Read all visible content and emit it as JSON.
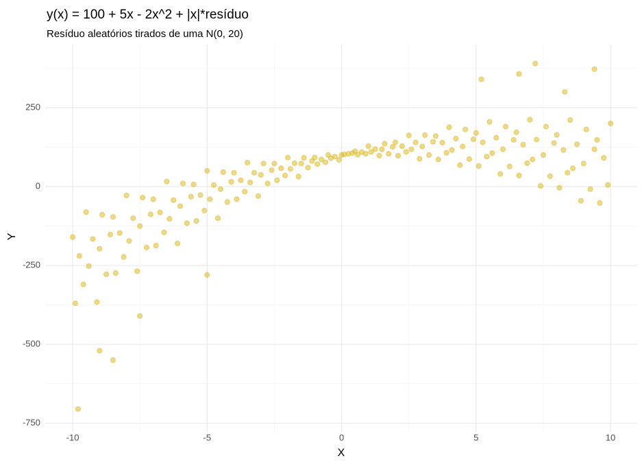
{
  "chart_data": {
    "type": "scatter",
    "title": "y(x) = 100 + 5x - 2x^2 + |x|*resíduo",
    "subtitle": "Resíduo aleatórios tirados de uma N(0, 20)",
    "x_label": "X",
    "y_label": "Y",
    "color": "#d9b514",
    "x": [
      -10,
      -9.9,
      -9.75,
      -9.6,
      -9.5,
      -9.4,
      -9.25,
      -9.1,
      -9,
      -8.9,
      -8.75,
      -8.6,
      -8.5,
      -8.4,
      -8.25,
      -8.1,
      -8,
      -7.9,
      -7.75,
      -7.6,
      -7.5,
      -7.4,
      -7.25,
      -7.1,
      -7,
      -6.9,
      -6.75,
      -6.6,
      -6.5,
      -6.4,
      -6.25,
      -6.1,
      -6,
      -5.9,
      -5.75,
      -5.6,
      -5.5,
      -5.4,
      -5.25,
      -5.1,
      -5,
      -4.9,
      -4.75,
      -4.6,
      -4.5,
      -4.4,
      -4.25,
      -4.1,
      -4,
      -3.9,
      -3.75,
      -3.6,
      -3.5,
      -3.4,
      -3.25,
      -3.1,
      -3,
      -2.9,
      -2.75,
      -2.6,
      -2.5,
      -2.4,
      -2.25,
      -2.1,
      -2,
      -1.9,
      -1.75,
      -1.6,
      -1.5,
      -1.4,
      -1.25,
      -1.1,
      -1,
      -0.9,
      -0.75,
      -0.6,
      -0.5,
      -0.4,
      -0.25,
      -0.1,
      0,
      0.1,
      0.25,
      0.4,
      0.5,
      0.6,
      0.75,
      0.9,
      1,
      1.1,
      1.25,
      1.4,
      1.5,
      1.6,
      1.75,
      1.9,
      2,
      2.1,
      2.25,
      2.4,
      2.5,
      2.6,
      2.75,
      2.9,
      3,
      3.1,
      3.25,
      3.4,
      3.5,
      3.6,
      3.75,
      3.9,
      4,
      4.1,
      4.25,
      4.4,
      4.5,
      4.6,
      4.75,
      4.9,
      5,
      5.1,
      5.25,
      5.4,
      5.5,
      5.6,
      5.75,
      5.9,
      6,
      6.1,
      6.25,
      6.4,
      6.5,
      6.6,
      6.75,
      6.9,
      7,
      7.1,
      7.25,
      7.4,
      7.5,
      7.6,
      7.75,
      7.9,
      8,
      8.1,
      8.25,
      8.4,
      8.5,
      8.6,
      8.75,
      8.9,
      9,
      9.1,
      9.25,
      9.4,
      9.5,
      9.6,
      9.75,
      9.9,
      10,
      -9.8,
      -8.5,
      7.2,
      9.4,
      5.2,
      6.6,
      -5,
      -9,
      -7.5,
      8.3
    ],
    "values": [
      -160,
      -370,
      -220,
      -310,
      -81,
      -252,
      -166,
      -366,
      -197,
      -89,
      -278,
      -152,
      -96,
      -274,
      -147,
      -223,
      -28,
      -172,
      -100,
      -268,
      -125,
      -35,
      -193,
      -88,
      -40,
      -187,
      -82,
      -145,
      16,
      -102,
      -43,
      -180,
      -62,
      10,
      -116,
      -32,
      7,
      -109,
      -27,
      -76,
      50,
      -40,
      5,
      -100,
      -8,
      46,
      -49,
      15,
      44,
      -40,
      20,
      -16,
      76,
      13,
      44,
      -30,
      37,
      73,
      10,
      52,
      73,
      20,
      58,
      35,
      92,
      56,
      74,
      32,
      73,
      91,
      60,
      81,
      92,
      71,
      86,
      77,
      100,
      90,
      95,
      85,
      100,
      102,
      104,
      106,
      112,
      101,
      109,
      104,
      128,
      110,
      119,
      98,
      118,
      136,
      104,
      126,
      140,
      98,
      128,
      110,
      162,
      118,
      140,
      88,
      127,
      163,
      100,
      142,
      160,
      86,
      139,
      107,
      188,
      116,
      152,
      68,
      127,
      181,
      87,
      150,
      170,
      65,
      140,
      95,
      205,
      106,
      155,
      40,
      118,
      190,
      64,
      148,
      172,
      35,
      133,
      74,
      212,
      86,
      149,
      2,
      100,
      190,
      33,
      138,
      164,
      -4,
      116,
      44,
      211,
      58,
      134,
      -45,
      73,
      181,
      -8,
      118,
      148,
      -52,
      91,
      5,
      200,
      -705,
      -550,
      390,
      372,
      340,
      357,
      -280,
      -520,
      -410,
      300
    ],
    "xlim": [
      -11.02,
      10.99
    ],
    "ylim": [
      -778,
      450
    ],
    "xticks": [
      -10,
      -5,
      0,
      5,
      10
    ],
    "yticks": [
      -750,
      -500,
      -250,
      0,
      250
    ],
    "xminor": [
      -7.5,
      -2.5,
      2.5,
      7.5
    ],
    "yminor": [
      -625,
      -375,
      -125,
      125,
      375
    ],
    "grid": true
  }
}
